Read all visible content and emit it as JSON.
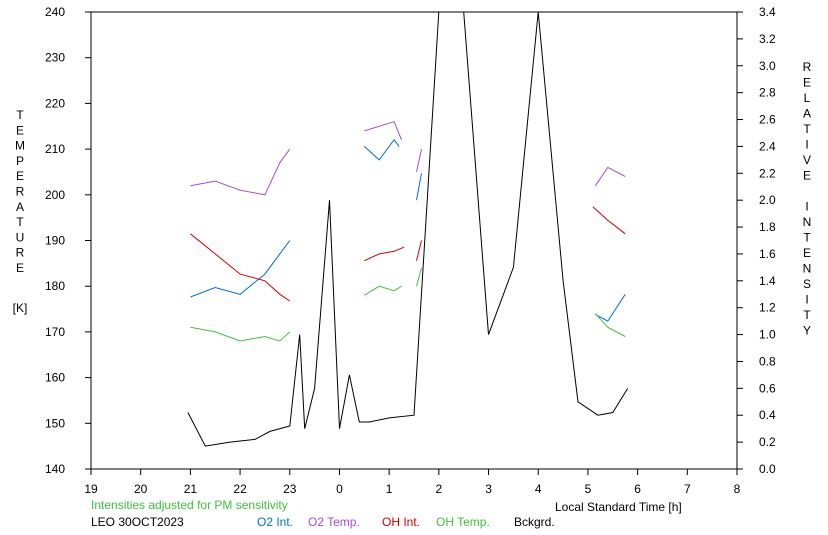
{
  "chart_data": {
    "type": "line",
    "left_axis_letters": [
      "T",
      "E",
      "M",
      "P",
      "E",
      "R",
      "A",
      "T",
      "U",
      "R",
      "E"
    ],
    "left_axis_unit": "[K]",
    "right_axis_letters": [
      "R",
      "E",
      "L",
      "A",
      "T",
      "I",
      "V",
      "E",
      " ",
      "I",
      "N",
      "T",
      "E",
      "N",
      "S",
      "I",
      "T",
      "Y"
    ],
    "xlabel": "Local Standard Time [h]",
    "x_ticks": [
      "19",
      "20",
      "21",
      "22",
      "23",
      "0",
      "1",
      "2",
      "3",
      "4",
      "5",
      "6",
      "7",
      "8"
    ],
    "xlim": [
      19,
      32
    ],
    "y_left_ticks": [
      "140",
      "150",
      "160",
      "170",
      "180",
      "190",
      "200",
      "210",
      "220",
      "230",
      "240"
    ],
    "ylim_left": [
      140,
      240
    ],
    "y_right_ticks": [
      "0.0",
      "0.2",
      "0.4",
      "0.6",
      "0.8",
      "1.0",
      "1.2",
      "1.4",
      "1.6",
      "1.8",
      "2.0",
      "2.2",
      "2.4",
      "2.6",
      "2.8",
      "3.0",
      "3.2",
      "3.4"
    ],
    "ylim_right": [
      0.0,
      3.4
    ],
    "note": "Intensities adjusted for PM sensitivity",
    "station": "LEO 30OCT2023",
    "series": [
      {
        "name": "O2 Int.",
        "axis": "right",
        "color": "#0070d0",
        "segments": [
          {
            "x": [
              21.0,
              21.5,
              22.0,
              22.5,
              22.8,
              23.0
            ],
            "y": [
              1.28,
              1.35,
              1.3,
              1.45,
              1.6,
              1.7
            ]
          },
          {
            "x": [
              24.5,
              24.8,
              25.1,
              25.2
            ],
            "y": [
              2.4,
              2.3,
              2.45,
              2.4
            ]
          },
          {
            "x": [
              25.55,
              25.65
            ],
            "y": [
              2.0,
              2.2
            ]
          },
          {
            "x": [
              29.15,
              29.4,
              29.75
            ],
            "y": [
              1.15,
              1.1,
              1.3
            ]
          }
        ]
      },
      {
        "name": "O2 Temp.",
        "axis": "left",
        "color": "#a050d0",
        "segments": [
          {
            "x": [
              21.0,
              21.5,
              22.0,
              22.5,
              22.8,
              23.0
            ],
            "y": [
              202,
              203,
              201,
              200,
              207,
              210
            ]
          },
          {
            "x": [
              24.5,
              24.8,
              25.1,
              25.25
            ],
            "y": [
              214,
              215,
              216,
              212
            ]
          },
          {
            "x": [
              25.55,
              25.65
            ],
            "y": [
              205,
              210
            ]
          },
          {
            "x": [
              29.15,
              29.4,
              29.75
            ],
            "y": [
              202,
              206,
              204
            ]
          }
        ]
      },
      {
        "name": "OH Int.",
        "axis": "right",
        "color": "#d00000",
        "segments": [
          {
            "x": [
              21.0,
              21.5,
              22.0,
              22.5,
              22.8,
              23.0
            ],
            "y": [
              1.75,
              1.6,
              1.45,
              1.4,
              1.3,
              1.25
            ]
          },
          {
            "x": [
              24.5,
              24.8,
              25.1,
              25.3
            ],
            "y": [
              1.55,
              1.6,
              1.62,
              1.65
            ]
          },
          {
            "x": [
              25.55,
              25.65
            ],
            "y": [
              1.55,
              1.7
            ]
          },
          {
            "x": [
              29.1,
              29.4,
              29.75
            ],
            "y": [
              1.95,
              1.85,
              1.75
            ]
          }
        ]
      },
      {
        "name": "OH Temp.",
        "axis": "left",
        "color": "#40c040",
        "segments": [
          {
            "x": [
              21.0,
              21.5,
              22.0,
              22.5,
              22.8,
              23.0
            ],
            "y": [
              171,
              170,
              168,
              169,
              168,
              170
            ]
          },
          {
            "x": [
              24.5,
              24.8,
              25.1,
              25.25
            ],
            "y": [
              178,
              180,
              179,
              180
            ]
          },
          {
            "x": [
              25.55,
              25.65
            ],
            "y": [
              180,
              184
            ]
          },
          {
            "x": [
              29.15,
              29.4,
              29.75
            ],
            "y": [
              174,
              171,
              169
            ]
          }
        ]
      },
      {
        "name": "Bckgrd.",
        "axis": "right",
        "color": "#000000",
        "segments": [
          {
            "x": [
              20.95,
              21.3,
              21.8,
              22.3,
              22.6,
              23.0,
              23.2,
              23.3,
              23.5,
              23.8,
              24.0,
              24.2,
              24.4,
              24.6,
              25.0,
              25.5,
              26.0,
              26.5,
              27.0,
              27.5,
              28.0,
              28.5,
              28.8,
              29.2,
              29.5,
              29.8
            ],
            "y": [
              0.42,
              0.17,
              0.2,
              0.22,
              0.28,
              0.32,
              1.0,
              0.3,
              0.6,
              2.0,
              0.3,
              0.7,
              0.35,
              0.35,
              0.38,
              0.4,
              3.4,
              3.4,
              1.0,
              1.5,
              3.4,
              1.4,
              0.5,
              0.4,
              0.42,
              0.6
            ]
          }
        ]
      }
    ]
  }
}
